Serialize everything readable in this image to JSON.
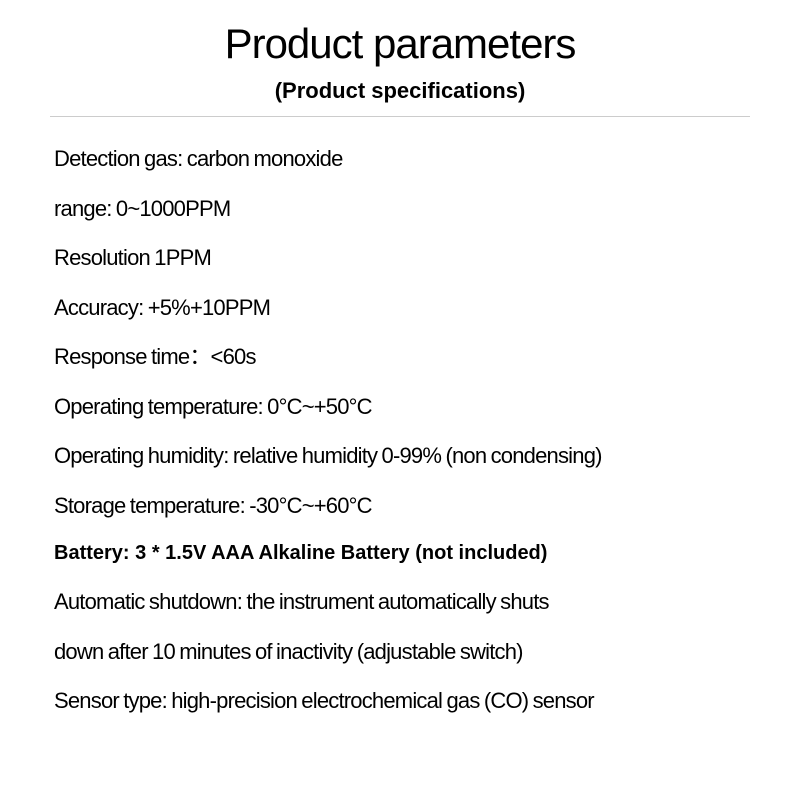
{
  "header": {
    "title": "Product parameters",
    "subtitle": "(Product specifications)"
  },
  "specs": [
    {
      "text": "Detection gas: carbon monoxide",
      "bold": false
    },
    {
      "text": "range: 0~1000PPM",
      "bold": false
    },
    {
      "text": "Resolution 1PPM",
      "bold": false
    },
    {
      "text": "Accuracy: +5%+10PPM",
      "bold": false
    },
    {
      "text": "Response time：<60s",
      "bold": false
    },
    {
      "text": "Operating temperature: 0°C~+50°C",
      "bold": false
    },
    {
      "text": "Operating humidity: relative humidity 0-99% (non condensing)",
      "bold": false
    },
    {
      "text": "Storage temperature: -30°C~+60°C",
      "bold": false
    },
    {
      "text": "Battery: 3 * 1.5V AAA Alkaline Battery (not included)",
      "bold": true
    },
    {
      "text": "Automatic shutdown: the instrument automatically shuts",
      "bold": false
    },
    {
      "text": "down after 10 minutes of inactivity (adjustable switch)",
      "bold": false
    },
    {
      "text": "Sensor type: high-precision electrochemical gas (CO) sensor",
      "bold": false
    }
  ],
  "styling": {
    "background_color": "#ffffff",
    "text_color": "#000000",
    "divider_color": "#cccccc",
    "title_fontsize": 42,
    "title_fontweight": 300,
    "subtitle_fontsize": 22,
    "subtitle_fontweight": 700,
    "body_fontsize": 22,
    "body_fontweight": 400,
    "bold_fontsize": 20,
    "bold_fontweight": 700,
    "line_spacing": 22
  }
}
